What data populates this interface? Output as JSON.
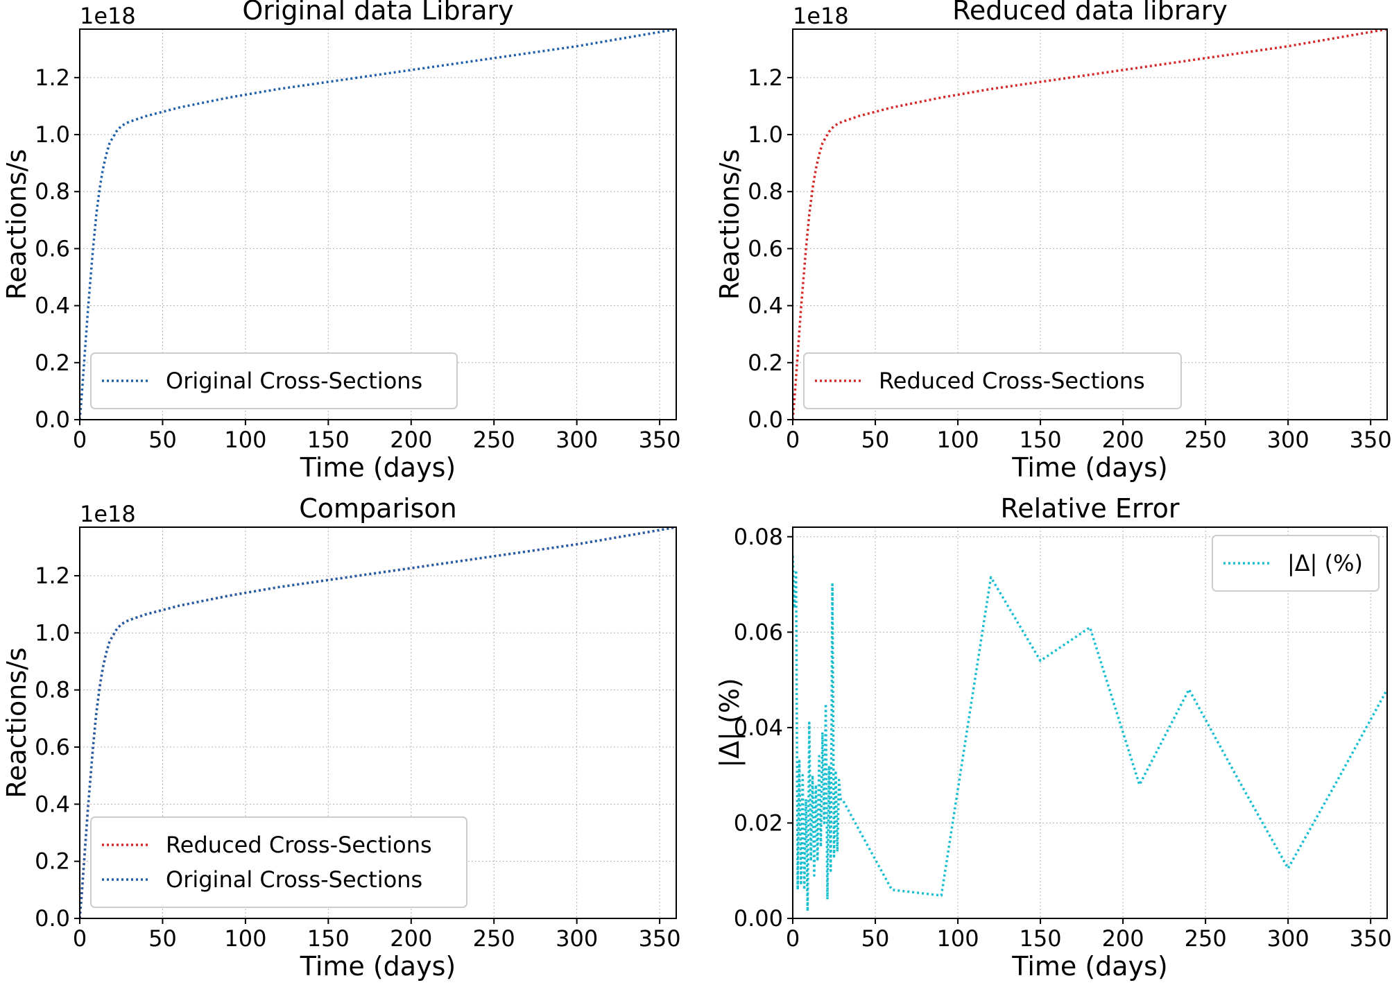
{
  "chart_data": [
    {
      "id": "original",
      "type": "line",
      "title": "Original data Library",
      "xlabel": "Time (days)",
      "ylabel": "Reactions/s",
      "y_offset_text": "1e18",
      "xlim": [
        0,
        360
      ],
      "ylim": [
        0,
        1.37
      ],
      "xticks": [
        0,
        50,
        100,
        150,
        200,
        250,
        300,
        350
      ],
      "yticks": [
        0.0,
        0.2,
        0.4,
        0.6,
        0.8,
        1.0,
        1.2
      ],
      "ytick_labels": [
        "0.0",
        "0.2",
        "0.4",
        "0.6",
        "0.8",
        "1.0",
        "1.2"
      ],
      "grid": true,
      "legend_position": "lower-left",
      "series": [
        {
          "name": "Original Cross-Sections",
          "color": "#1f5fa8",
          "x": [
            0,
            1,
            2,
            3,
            4,
            5,
            6,
            7,
            8,
            9,
            10,
            12,
            14,
            16,
            18,
            20,
            22,
            25,
            28,
            30,
            40,
            60,
            90,
            120,
            150,
            180,
            210,
            240,
            270,
            300,
            330,
            360
          ],
          "y": [
            0.0,
            0.07,
            0.15,
            0.23,
            0.31,
            0.39,
            0.46,
            0.53,
            0.6,
            0.66,
            0.72,
            0.81,
            0.88,
            0.93,
            0.97,
            0.99,
            1.01,
            1.03,
            1.04,
            1.045,
            1.065,
            1.095,
            1.13,
            1.16,
            1.185,
            1.21,
            1.235,
            1.26,
            1.285,
            1.31,
            1.34,
            1.37
          ]
        }
      ]
    },
    {
      "id": "reduced",
      "type": "line",
      "title": "Reduced data library",
      "xlabel": "Time (days)",
      "ylabel": "Reactions/s",
      "y_offset_text": "1e18",
      "xlim": [
        0,
        360
      ],
      "ylim": [
        0,
        1.37
      ],
      "xticks": [
        0,
        50,
        100,
        150,
        200,
        250,
        300,
        350
      ],
      "yticks": [
        0.0,
        0.2,
        0.4,
        0.6,
        0.8,
        1.0,
        1.2
      ],
      "ytick_labels": [
        "0.0",
        "0.2",
        "0.4",
        "0.6",
        "0.8",
        "1.0",
        "1.2"
      ],
      "grid": true,
      "legend_position": "lower-left",
      "series": [
        {
          "name": "Reduced Cross-Sections",
          "color": "#d62728",
          "x": [
            0,
            1,
            2,
            3,
            4,
            5,
            6,
            7,
            8,
            9,
            10,
            12,
            14,
            16,
            18,
            20,
            22,
            25,
            28,
            30,
            40,
            60,
            90,
            120,
            150,
            180,
            210,
            240,
            270,
            300,
            330,
            360
          ],
          "y": [
            0.0,
            0.07,
            0.15,
            0.23,
            0.31,
            0.39,
            0.46,
            0.53,
            0.6,
            0.66,
            0.72,
            0.81,
            0.88,
            0.93,
            0.97,
            0.99,
            1.01,
            1.03,
            1.04,
            1.045,
            1.065,
            1.095,
            1.13,
            1.16,
            1.185,
            1.21,
            1.235,
            1.26,
            1.285,
            1.31,
            1.34,
            1.37
          ]
        }
      ]
    },
    {
      "id": "comparison",
      "type": "line",
      "title": "Comparison",
      "xlabel": "Time (days)",
      "ylabel": "Reactions/s",
      "y_offset_text": "1e18",
      "xlim": [
        0,
        360
      ],
      "ylim": [
        0,
        1.37
      ],
      "xticks": [
        0,
        50,
        100,
        150,
        200,
        250,
        300,
        350
      ],
      "yticks": [
        0.0,
        0.2,
        0.4,
        0.6,
        0.8,
        1.0,
        1.2
      ],
      "ytick_labels": [
        "0.0",
        "0.2",
        "0.4",
        "0.6",
        "0.8",
        "1.0",
        "1.2"
      ],
      "grid": true,
      "legend_position": "lower-left",
      "series": [
        {
          "name": "Reduced Cross-Sections",
          "color": "#d62728",
          "x": [
            0,
            1,
            2,
            3,
            4,
            5,
            6,
            7,
            8,
            9,
            10,
            12,
            14,
            16,
            18,
            20,
            22,
            25,
            28,
            30,
            40,
            60,
            90,
            120,
            150,
            180,
            210,
            240,
            270,
            300,
            330,
            360
          ],
          "y": [
            0.0,
            0.07,
            0.15,
            0.23,
            0.31,
            0.39,
            0.46,
            0.53,
            0.6,
            0.66,
            0.72,
            0.81,
            0.88,
            0.93,
            0.97,
            0.99,
            1.01,
            1.03,
            1.04,
            1.045,
            1.065,
            1.095,
            1.13,
            1.16,
            1.185,
            1.21,
            1.235,
            1.26,
            1.285,
            1.31,
            1.34,
            1.37
          ]
        },
        {
          "name": "Original Cross-Sections",
          "color": "#1f5fa8",
          "x": [
            0,
            1,
            2,
            3,
            4,
            5,
            6,
            7,
            8,
            9,
            10,
            12,
            14,
            16,
            18,
            20,
            22,
            25,
            28,
            30,
            40,
            60,
            90,
            120,
            150,
            180,
            210,
            240,
            270,
            300,
            330,
            360
          ],
          "y": [
            0.0,
            0.07,
            0.15,
            0.23,
            0.31,
            0.39,
            0.46,
            0.53,
            0.6,
            0.66,
            0.72,
            0.81,
            0.88,
            0.93,
            0.97,
            0.99,
            1.01,
            1.03,
            1.04,
            1.045,
            1.065,
            1.095,
            1.13,
            1.16,
            1.185,
            1.21,
            1.235,
            1.26,
            1.285,
            1.31,
            1.34,
            1.37
          ]
        }
      ]
    },
    {
      "id": "relative-error",
      "type": "line",
      "title": "Relative Error",
      "xlabel": "Time (days)",
      "ylabel": "|Δ| (%)",
      "y_offset_text": "",
      "xlim": [
        0,
        360
      ],
      "ylim": [
        0,
        0.082
      ],
      "xticks": [
        0,
        50,
        100,
        150,
        200,
        250,
        300,
        350
      ],
      "yticks": [
        0.0,
        0.02,
        0.04,
        0.06,
        0.08
      ],
      "ytick_labels": [
        "0.00",
        "0.02",
        "0.04",
        "0.06",
        "0.08"
      ],
      "grid": true,
      "legend_position": "upper-right",
      "series": [
        {
          "name": "|Δ| (%)",
          "color": "#17becf",
          "x": [
            0,
            1,
            2,
            3,
            4,
            5,
            6,
            7,
            8,
            9,
            10,
            11,
            12,
            13,
            14,
            15,
            16,
            17,
            18,
            19,
            20,
            21,
            22,
            23,
            24,
            25,
            26,
            27,
            28,
            29,
            30,
            60,
            90,
            120,
            150,
            180,
            210,
            240,
            270,
            300,
            330,
            360
          ],
          "y": [
            0.076,
            0.065,
            0.073,
            0.006,
            0.033,
            0.007,
            0.03,
            0.006,
            0.025,
            0.0015,
            0.041,
            0.012,
            0.03,
            0.009,
            0.028,
            0.012,
            0.034,
            0.015,
            0.039,
            0.02,
            0.045,
            0.004,
            0.032,
            0.01,
            0.07,
            0.013,
            0.031,
            0.014,
            0.029,
            0.025,
            0.025,
            0.006,
            0.0048,
            0.0715,
            0.054,
            0.061,
            0.028,
            0.048,
            0.029,
            0.0105,
            0.029,
            0.048
          ]
        }
      ]
    }
  ]
}
